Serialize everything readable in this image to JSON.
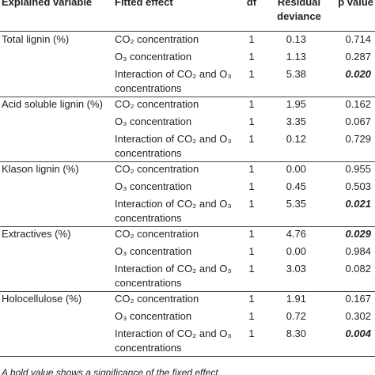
{
  "header": {
    "columns": [
      "Explained variable",
      "Fitted effect",
      "df",
      "Residual deviance",
      "p value"
    ]
  },
  "table": {
    "groups": [
      {
        "variable": "Total lignin (%)",
        "rows": [
          {
            "effect": "CO₂ concentration",
            "df": 1,
            "deviance": 0.13,
            "p": 0.714,
            "bold": false
          },
          {
            "effect": "O₃ concentration",
            "df": 1,
            "deviance": 1.13,
            "p": 0.287,
            "bold": false
          },
          {
            "effect": "Interaction of CO₂ and O₃ concentrations",
            "df": 1,
            "deviance": 5.38,
            "p": {
              "value": 0.02,
              "label": "0.020"
            },
            "bold": true
          }
        ]
      },
      {
        "variable": "Acid soluble lignin (%)",
        "rows": [
          {
            "effect": "CO₂ concentration",
            "df": 1,
            "deviance": 1.95,
            "p": 0.162,
            "bold": false
          },
          {
            "effect": "O₃ concentration",
            "df": 1,
            "deviance": 3.35,
            "p": 0.067,
            "bold": false
          },
          {
            "effect": "Interaction of CO₂ and O₃ concentrations",
            "df": 1,
            "deviance": 0.12,
            "p": 0.729,
            "bold": false
          }
        ]
      },
      {
        "variable": "Klason lignin (%)",
        "rows": [
          {
            "effect": "CO₂ concentration",
            "df": 1,
            "deviance": {
              "value": 0,
              "label": "0.00"
            },
            "p": 0.955,
            "bold": false
          },
          {
            "effect": "O₃ concentration",
            "df": 1,
            "deviance": 0.45,
            "p": 0.503,
            "bold": false
          },
          {
            "effect": "Interaction of CO₂ and O₃ concentrations",
            "df": 1,
            "deviance": 5.35,
            "p": 0.021,
            "bold": true
          }
        ]
      },
      {
        "variable": "Extractives (%)",
        "rows": [
          {
            "effect": "CO₂ concentration",
            "df": 1,
            "deviance": 4.76,
            "p": 0.029,
            "bold": true
          },
          {
            "effect": "O₃ concentration",
            "df": 1,
            "deviance": {
              "value": 0,
              "label": "0.00"
            },
            "p": 0.984,
            "bold": false
          },
          {
            "effect": "Interaction of CO₂ and O₃ concentrations",
            "df": 1,
            "deviance": 3.03,
            "p": 0.082,
            "bold": false
          }
        ]
      },
      {
        "variable": "Holocellulose (%)",
        "rows": [
          {
            "effect": "CO₂ concentration",
            "df": 1,
            "deviance": 1.91,
            "p": 0.167,
            "bold": false
          },
          {
            "effect": "O₃ concentration",
            "df": 1,
            "deviance": 0.72,
            "p": 0.302,
            "bold": false
          },
          {
            "effect": "Interaction of CO₂ and O₃ concentrations",
            "df": 1,
            "deviance": {
              "value": 8.3,
              "label": "8.30"
            },
            "p": 0.004,
            "bold": true
          }
        ]
      }
    ]
  },
  "footnote": "A bold value shows a significance of the fixed effect."
}
